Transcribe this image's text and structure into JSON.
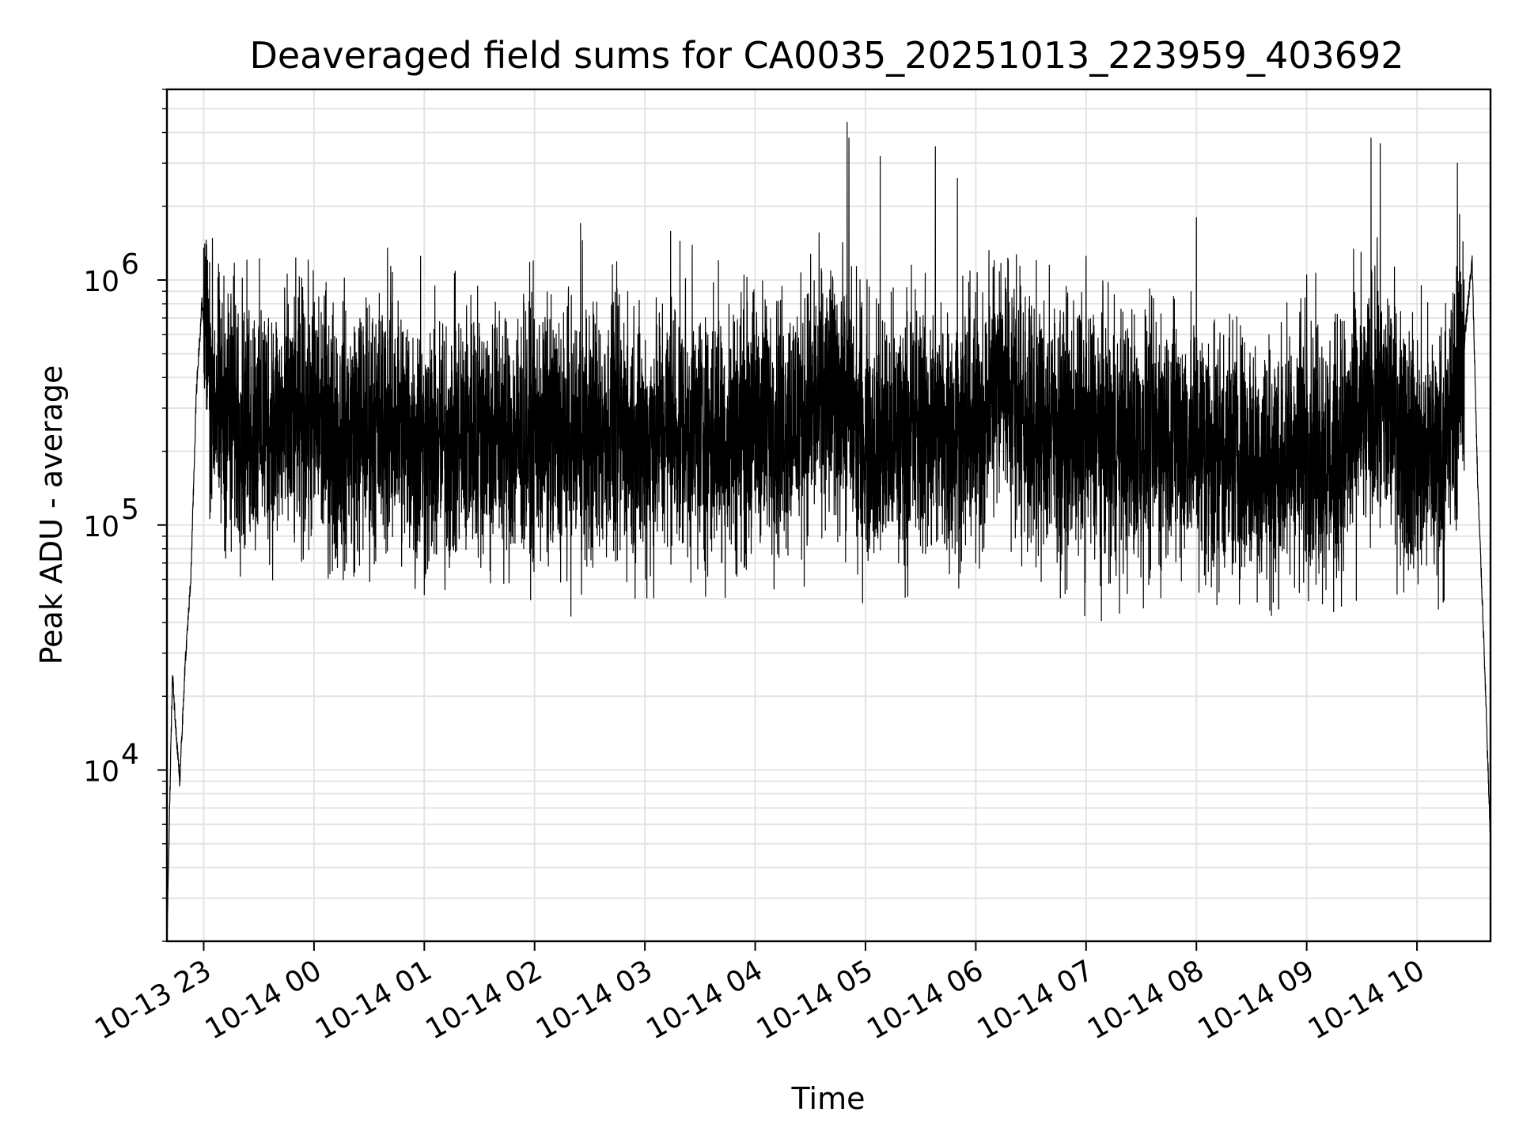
{
  "chart_data": {
    "type": "line",
    "title": "Deaveraged field sums for CA0035_20251013_223959_403692",
    "xlabel": "Time",
    "ylabel": "Peak ADU - average",
    "y_scale": "log",
    "xlim": [
      "2025-10-13 22:40",
      "2025-10-14 10:40"
    ],
    "ylim": [
      2000,
      6000000
    ],
    "x_tick_labels": [
      "10-13 23",
      "10-14 00",
      "10-14 01",
      "10-14 02",
      "10-14 03",
      "10-14 04",
      "10-14 05",
      "10-14 06",
      "10-14 07",
      "10-14 08",
      "10-14 09",
      "10-14 10"
    ],
    "y_tick_labels": [
      {
        "base": "10",
        "exp": "4"
      },
      {
        "base": "10",
        "exp": "5"
      },
      {
        "base": "10",
        "exp": "6"
      }
    ],
    "grid": true,
    "line_color": "#000000",
    "series": [
      {
        "x": [
          "2025-10-13 22:40",
          "2025-10-13 22:43",
          "2025-10-13 22:45",
          "2025-10-13 22:47",
          "2025-10-13 22:50",
          "2025-10-13 22:53",
          "2025-10-13 22:56",
          "2025-10-13 22:59",
          "2025-10-13 23:02",
          "2025-10-13 23:05",
          "2025-10-13 23:10",
          "2025-10-13 23:15",
          "2025-10-13 23:20",
          "2025-10-13 23:30",
          "2025-10-13 23:45",
          "2025-10-14 00:00",
          "2025-10-14 00:15",
          "2025-10-14 00:30",
          "2025-10-14 00:45",
          "2025-10-14 01:00",
          "2025-10-14 01:15",
          "2025-10-14 01:30",
          "2025-10-14 01:45",
          "2025-10-14 02:00",
          "2025-10-14 02:15",
          "2025-10-14 02:30",
          "2025-10-14 02:45",
          "2025-10-14 03:00",
          "2025-10-14 03:15",
          "2025-10-14 03:30",
          "2025-10-14 03:45",
          "2025-10-14 04:00",
          "2025-10-14 04:15",
          "2025-10-14 04:30",
          "2025-10-14 04:45",
          "2025-10-14 05:00",
          "2025-10-14 05:15",
          "2025-10-14 05:30",
          "2025-10-14 05:45",
          "2025-10-14 06:00",
          "2025-10-14 06:15",
          "2025-10-14 06:30",
          "2025-10-14 06:45",
          "2025-10-14 07:00",
          "2025-10-14 07:15",
          "2025-10-14 07:30",
          "2025-10-14 07:45",
          "2025-10-14 08:00",
          "2025-10-14 08:15",
          "2025-10-14 08:30",
          "2025-10-14 08:45",
          "2025-10-14 09:00",
          "2025-10-14 09:15",
          "2025-10-14 09:30",
          "2025-10-14 09:45",
          "2025-10-14 10:00",
          "2025-10-14 10:15",
          "2025-10-14 10:25",
          "2025-10-14 10:30",
          "2025-10-14 10:33",
          "2025-10-14 10:36",
          "2025-10-14 10:40"
        ],
        "y": [
          2000,
          25000,
          14000,
          9000,
          28000,
          60000,
          350000,
          800000,
          500000,
          350000,
          280000,
          300000,
          260000,
          270000,
          250000,
          280000,
          230000,
          250000,
          270000,
          200000,
          220000,
          260000,
          230000,
          240000,
          220000,
          230000,
          250000,
          220000,
          260000,
          240000,
          230000,
          270000,
          260000,
          300000,
          350000,
          230000,
          220000,
          260000,
          240000,
          250000,
          420000,
          260000,
          240000,
          230000,
          220000,
          210000,
          240000,
          220000,
          200000,
          190000,
          170000,
          230000,
          180000,
          280000,
          300000,
          190000,
          200000,
          500000,
          1200000,
          150000,
          40000,
          5000
        ],
        "peaks": [
          [
            "2025-10-13 23:00",
            1350000
          ],
          [
            "2025-10-14 00:40",
            1350000
          ],
          [
            "2025-10-14 00:58",
            1250000
          ],
          [
            "2025-10-14 01:36",
            1280000
          ],
          [
            "2025-10-14 02:25",
            1700000
          ],
          [
            "2025-10-14 02:26",
            1450000
          ],
          [
            "2025-10-14 03:14",
            1580000
          ],
          [
            "2025-10-14 03:40",
            1200000
          ],
          [
            "2025-10-14 04:50",
            4400000
          ],
          [
            "2025-10-14 04:51",
            3800000
          ],
          [
            "2025-10-14 05:08",
            3200000
          ],
          [
            "2025-10-14 05:25",
            1150000
          ],
          [
            "2025-10-14 05:38",
            3500000
          ],
          [
            "2025-10-14 05:50",
            2600000
          ],
          [
            "2025-10-14 06:10",
            1200000
          ],
          [
            "2025-10-14 06:40",
            1150000
          ],
          [
            "2025-10-14 07:00",
            1250000
          ],
          [
            "2025-10-14 08:00",
            1800000
          ],
          [
            "2025-10-14 09:00",
            1050000
          ],
          [
            "2025-10-14 09:35",
            3800000
          ],
          [
            "2025-10-14 09:40",
            3600000
          ],
          [
            "2025-10-14 10:22",
            3000000
          ]
        ],
        "dips": [
          [
            "2025-10-13 23:15",
            78000
          ],
          [
            "2025-10-14 00:10",
            65000
          ],
          [
            "2025-10-14 00:55",
            55000
          ],
          [
            "2025-10-14 01:00",
            52000
          ],
          [
            "2025-10-14 01:36",
            58000
          ],
          [
            "2025-10-14 02:45",
            72000
          ],
          [
            "2025-10-14 03:03",
            62000
          ],
          [
            "2025-10-14 05:18",
            70000
          ],
          [
            "2025-10-14 06:00",
            70000
          ],
          [
            "2025-10-14 06:25",
            68000
          ],
          [
            "2025-10-14 08:05",
            57000
          ],
          [
            "2025-10-14 09:20",
            65000
          ]
        ]
      }
    ]
  }
}
